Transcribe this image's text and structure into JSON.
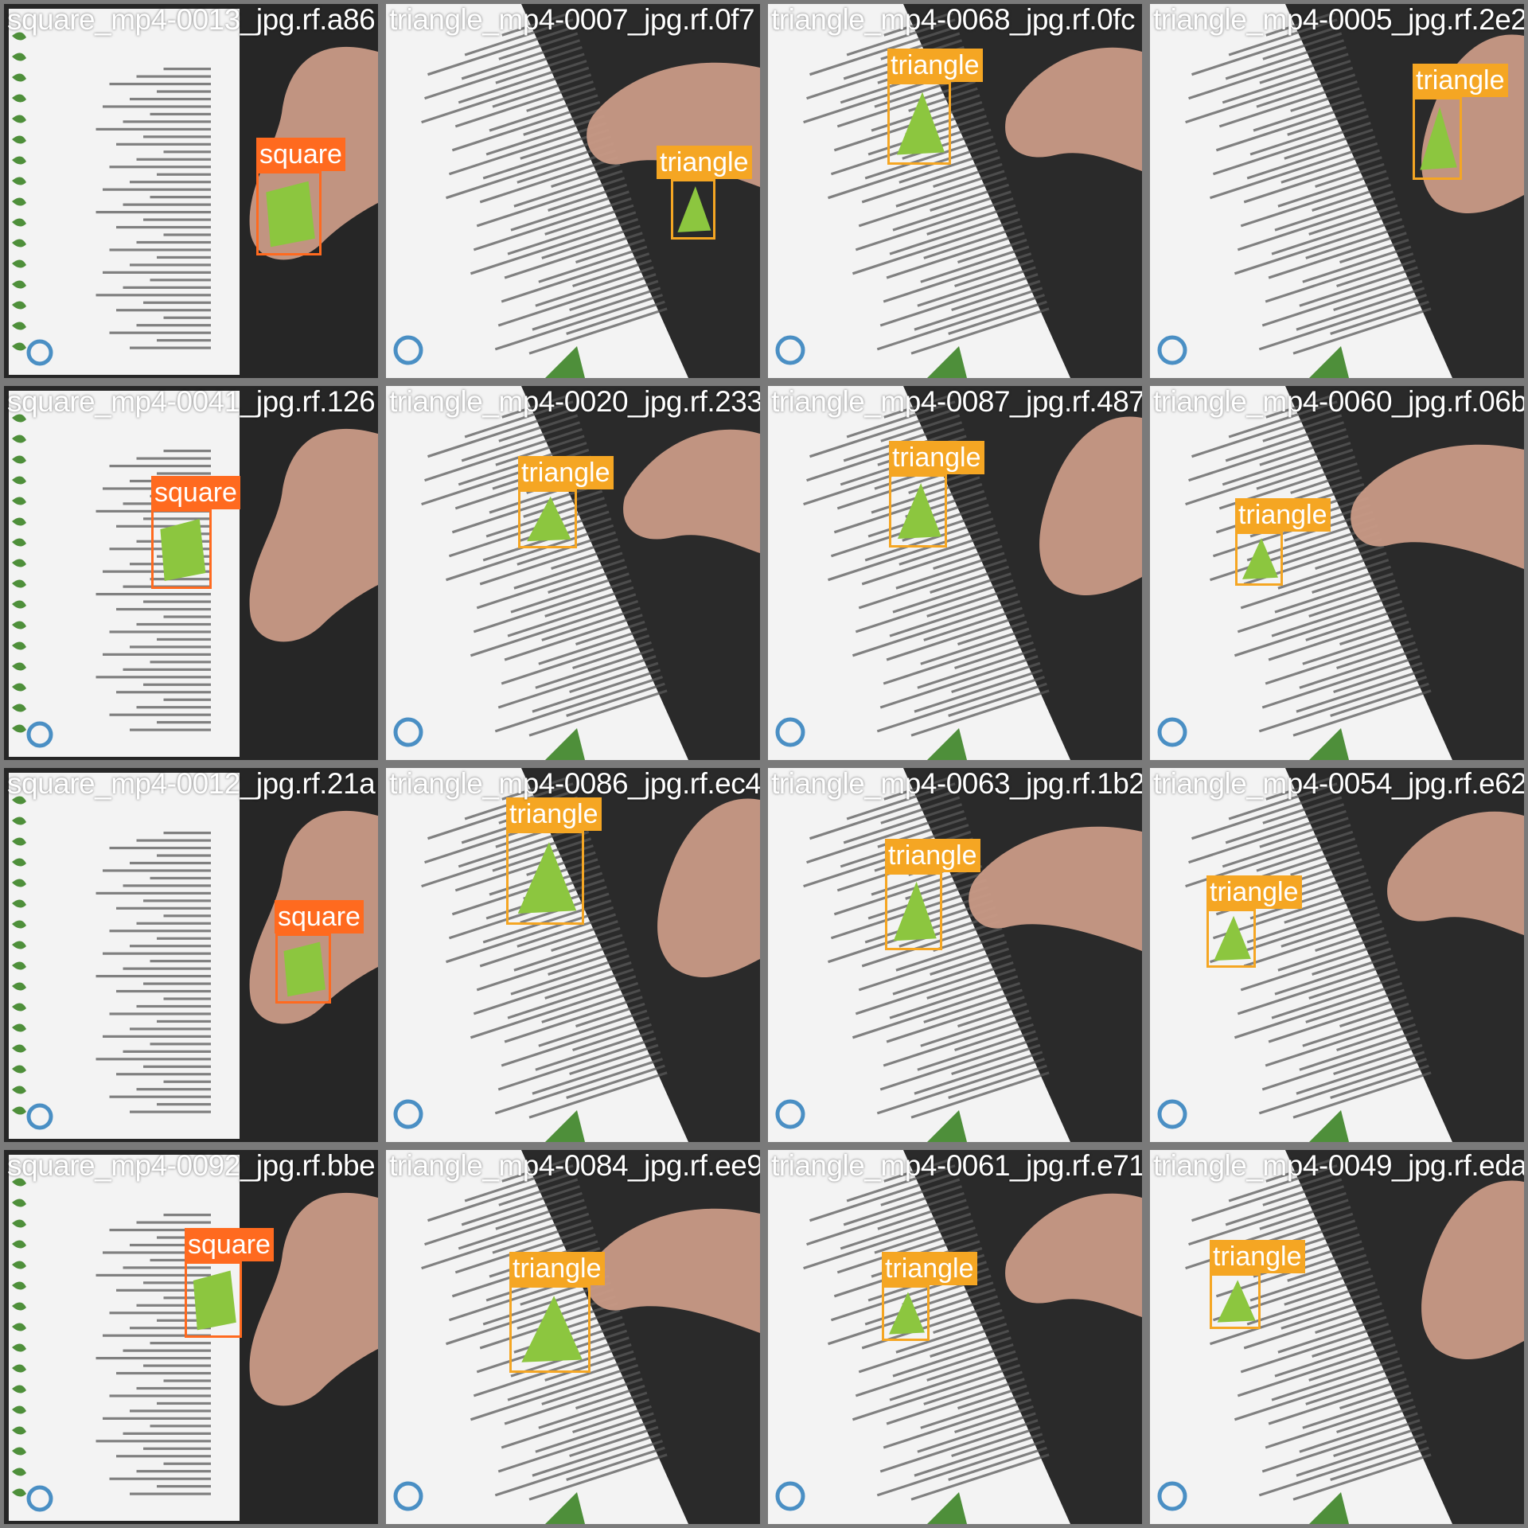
{
  "colors": {
    "square": "#ff6a1f",
    "triangle": "#f5a623",
    "tile_separator": "#7a7a7a",
    "background_dark": "#1f1f1f",
    "paper": "#f3f3f3",
    "object_green": "#8cc63f"
  },
  "tiles": [
    {
      "filename": "square_mp4-0013_jpg.rf.a86",
      "scene": "book",
      "detections": [
        {
          "label": "square",
          "cls": "square"
        }
      ]
    },
    {
      "filename": "triangle_mp4-0007_jpg.rf.0f7",
      "scene": "paper",
      "detections": [
        {
          "label": "triangle",
          "cls": "triangle"
        }
      ]
    },
    {
      "filename": "triangle_mp4-0068_jpg.rf.0fc",
      "scene": "paper",
      "detections": [
        {
          "label": "triangle",
          "cls": "triangle"
        }
      ]
    },
    {
      "filename": "triangle_mp4-0005_jpg.rf.2e2",
      "scene": "paper",
      "detections": [
        {
          "label": "triangle",
          "cls": "triangle"
        }
      ]
    },
    {
      "filename": "square_mp4-0041_jpg.rf.126",
      "scene": "book",
      "detections": [
        {
          "label": "square",
          "cls": "square"
        }
      ]
    },
    {
      "filename": "triangle_mp4-0020_jpg.rf.233",
      "scene": "paper",
      "detections": [
        {
          "label": "triangle",
          "cls": "triangle"
        }
      ]
    },
    {
      "filename": "triangle_mp4-0087_jpg.rf.487",
      "scene": "paper",
      "detections": [
        {
          "label": "triangle",
          "cls": "triangle"
        }
      ]
    },
    {
      "filename": "triangle_mp4-0060_jpg.rf.06b",
      "scene": "paper",
      "detections": [
        {
          "label": "triangle",
          "cls": "triangle"
        }
      ]
    },
    {
      "filename": "square_mp4-0012_jpg.rf.21a",
      "scene": "book",
      "detections": [
        {
          "label": "square",
          "cls": "square"
        }
      ]
    },
    {
      "filename": "triangle_mp4-0086_jpg.rf.ec4",
      "scene": "paper",
      "detections": [
        {
          "label": "triangle",
          "cls": "triangle"
        }
      ]
    },
    {
      "filename": "triangle_mp4-0063_jpg.rf.1b2",
      "scene": "paper",
      "detections": [
        {
          "label": "triangle",
          "cls": "triangle"
        }
      ]
    },
    {
      "filename": "triangle_mp4-0054_jpg.rf.e62",
      "scene": "paper",
      "detections": [
        {
          "label": "triangle",
          "cls": "triangle"
        }
      ]
    },
    {
      "filename": "square_mp4-0092_jpg.rf.bbe",
      "scene": "book",
      "detections": [
        {
          "label": "square",
          "cls": "square"
        }
      ]
    },
    {
      "filename": "triangle_mp4-0084_jpg.rf.ee9",
      "scene": "paper",
      "detections": [
        {
          "label": "triangle",
          "cls": "triangle"
        }
      ]
    },
    {
      "filename": "triangle_mp4-0061_jpg.rf.e71",
      "scene": "paper",
      "detections": [
        {
          "label": "triangle",
          "cls": "triangle"
        }
      ]
    },
    {
      "filename": "triangle_mp4-0049_jpg.rf.eda",
      "scene": "paper",
      "detections": [
        {
          "label": "triangle",
          "cls": "triangle"
        }
      ]
    }
  ]
}
